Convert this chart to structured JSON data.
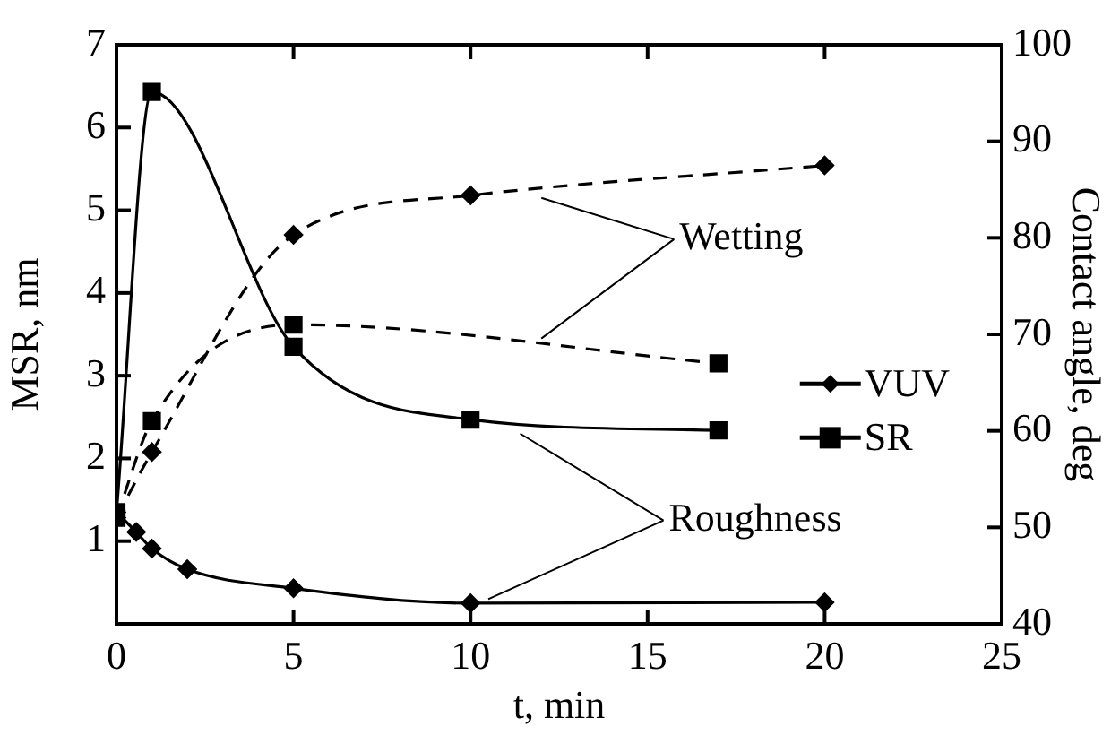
{
  "chart_data": {
    "type": "line",
    "xlabel": "t, min",
    "ylabel": "MSR, nm",
    "y2label": "Contact angle, deg",
    "xlim": [
      0,
      25
    ],
    "xticks": [
      0,
      5,
      10,
      15,
      20,
      25
    ],
    "ylim": [
      0,
      7
    ],
    "yticks": [
      1,
      2,
      3,
      4,
      5,
      6,
      7
    ],
    "y2lim": [
      40,
      100
    ],
    "y2ticks": [
      40,
      50,
      60,
      70,
      80,
      90,
      100
    ],
    "legend": "right",
    "grid": false,
    "annotations": [
      {
        "text": "Wetting",
        "x": 12,
        "y": 5.15
      },
      {
        "text": "Roughness",
        "x": 11.4,
        "y": 2.3
      }
    ],
    "series": [
      {
        "name": "VUV",
        "color": "#000000",
        "marker": "diamond",
        "line_style": "solid",
        "x": [
          0,
          0.56,
          1,
          2,
          5,
          10,
          20
        ],
        "values": [
          1.35,
          1.11,
          0.91,
          0.66,
          0.43,
          0.25,
          0.26
        ]
      },
      {
        "name": "SR",
        "color": "#000000",
        "marker": "square",
        "line_style": "solid",
        "x": [
          0,
          1,
          5,
          10,
          17
        ],
        "values": [
          1.35,
          6.43,
          3.35,
          2.47,
          2.34
        ]
      },
      {
        "color": "#000000",
        "marker": "diamond",
        "line_style": "dashed",
        "axis": "y2",
        "x": [
          0,
          1,
          5,
          10,
          20
        ],
        "values": [
          51,
          57.8,
          80.3,
          84.4,
          87.5
        ]
      },
      {
        "color": "#000000",
        "marker": "square",
        "line_style": "dashed",
        "axis": "y2",
        "x": [
          0,
          1,
          5,
          17
        ],
        "values": [
          51,
          61,
          71,
          67
        ]
      }
    ]
  }
}
